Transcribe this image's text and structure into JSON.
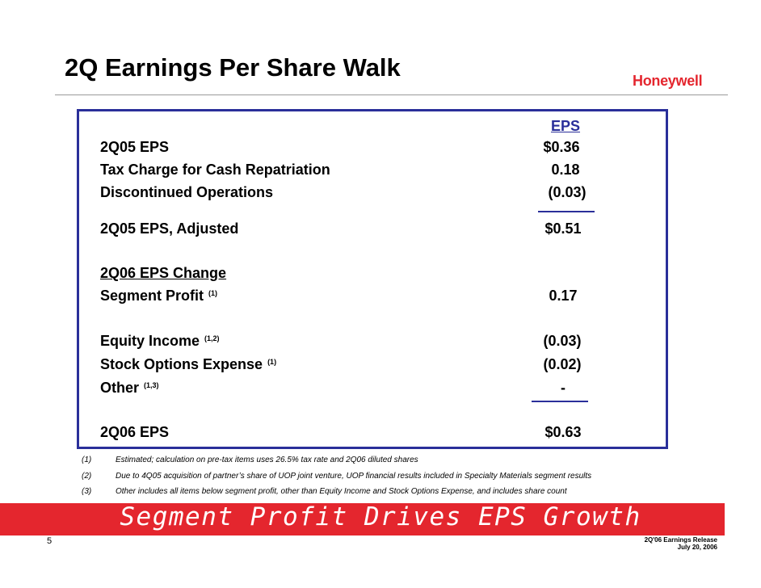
{
  "header": {
    "title": "2Q Earnings Per Share Walk",
    "logo": "Honeywell"
  },
  "table": {
    "eps_header": "EPS",
    "rows": [
      {
        "label": "2Q05 EPS",
        "sup": "",
        "value": "$0.36"
      },
      {
        "label": "Tax Charge for Cash Repatriation",
        "sup": "",
        "value": "0.18"
      },
      {
        "label": "Discontinued Operations",
        "sup": "",
        "value": "(0.03)"
      },
      {
        "label": "2Q05 EPS, Adjusted",
        "sup": "",
        "value": "$0.51"
      },
      {
        "label": "2Q06 EPS Change",
        "sup": "",
        "value": ""
      },
      {
        "label": "Segment Profit",
        "sup": "(1)",
        "value": "0.17"
      },
      {
        "label": "Equity Income",
        "sup": "(1,2)",
        "value": "(0.03)"
      },
      {
        "label": "Stock Options Expense",
        "sup": "(1)",
        "value": "(0.02)"
      },
      {
        "label": "Other",
        "sup": "(1,3)",
        "value": "-"
      },
      {
        "label": "2Q06 EPS",
        "sup": "",
        "value": "$0.63"
      }
    ]
  },
  "footnotes": [
    {
      "num": "(1)",
      "text": "Estimated; calculation on pre-tax items uses 26.5% tax rate and 2Q06 diluted shares"
    },
    {
      "num": "(2)",
      "text": "Due to 4Q05 acquisition of partner’s share of UOP joint venture, UOP financial results included in Specialty Materials segment results"
    },
    {
      "num": "(3)",
      "text": "Other includes all items below segment profit, other than Equity Income and Stock Options Expense, and includes share count"
    }
  ],
  "banner": "Segment Profit Drives EPS Growth",
  "footer": {
    "page_number": "5",
    "release_title": "2Q'06 Earnings Release",
    "release_date": "July 20, 2006"
  },
  "colors": {
    "accent_blue": "#2a2f9a",
    "brand_red": "#e4262e"
  }
}
